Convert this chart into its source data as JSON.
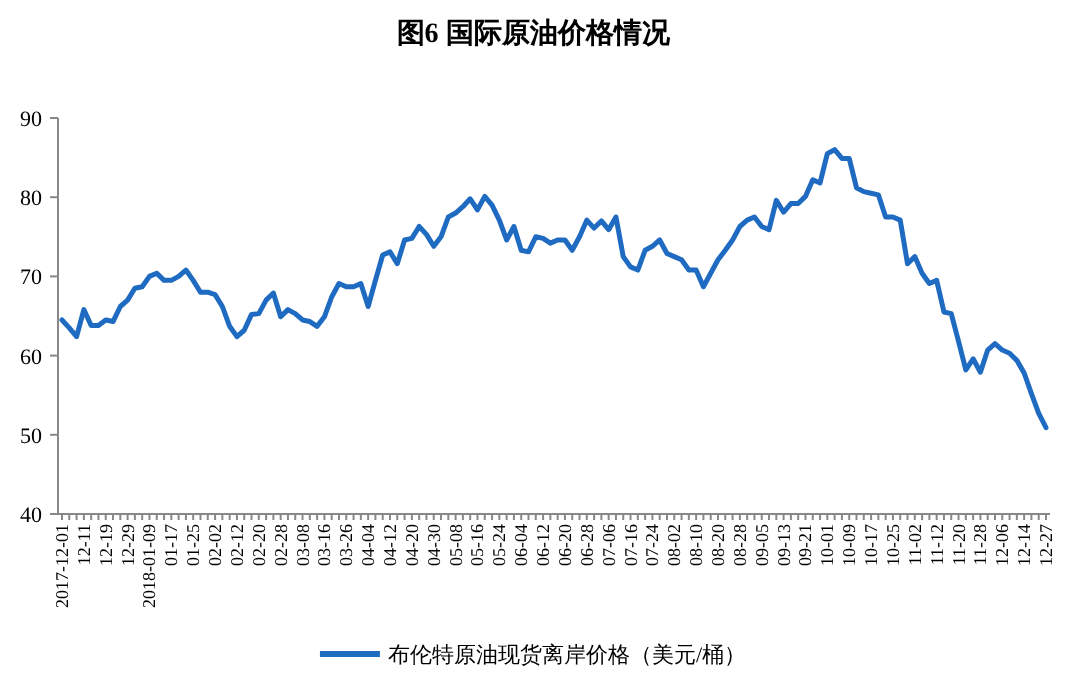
{
  "chart_data": {
    "type": "line",
    "title": "图6  国际原油价格情况",
    "categories": [
      "2017-12-01",
      null,
      null,
      "12-11",
      null,
      null,
      "12-19",
      null,
      null,
      "12-29",
      null,
      null,
      "2018-01-09",
      null,
      null,
      "01-17",
      null,
      null,
      "01-25",
      null,
      null,
      "02-02",
      null,
      null,
      "02-12",
      null,
      null,
      "02-20",
      null,
      null,
      "02-28",
      null,
      null,
      "03-08",
      null,
      null,
      "03-16",
      null,
      null,
      "03-26",
      null,
      null,
      "04-04",
      null,
      null,
      "04-12",
      null,
      null,
      "04-20",
      null,
      null,
      "04-30",
      null,
      null,
      "05-08",
      null,
      null,
      "05-16",
      null,
      null,
      "05-24",
      null,
      null,
      "06-04",
      null,
      null,
      "06-12",
      null,
      null,
      "06-20",
      null,
      null,
      "06-28",
      null,
      null,
      "07-06",
      null,
      null,
      "07-16",
      null,
      null,
      "07-24",
      null,
      null,
      "08-02",
      null,
      null,
      "08-10",
      null,
      null,
      "08-20",
      null,
      null,
      "08-28",
      null,
      null,
      "09-05",
      null,
      null,
      "09-13",
      null,
      null,
      "09-21",
      null,
      null,
      "10-01",
      null,
      null,
      "10-09",
      null,
      null,
      "10-17",
      null,
      null,
      "10-25",
      null,
      null,
      "11-02",
      null,
      null,
      "11-12",
      null,
      null,
      "11-20",
      null,
      null,
      "11-28",
      null,
      null,
      "12-06",
      null,
      null,
      "12-14",
      null,
      null,
      "12-27"
    ],
    "series": [
      {
        "name": "布伦特原油现货离岸价格（美元/桶）",
        "color": "#1f6bc1",
        "values": [
          64.5,
          63.5,
          62.4,
          65.8,
          63.8,
          63.8,
          64.5,
          64.3,
          66.2,
          67.0,
          68.5,
          68.7,
          70.0,
          70.4,
          69.5,
          69.5,
          70.0,
          70.8,
          69.5,
          68.0,
          68.0,
          67.7,
          66.2,
          63.7,
          62.4,
          63.2,
          65.2,
          65.3,
          67.0,
          67.9,
          64.9,
          65.8,
          65.3,
          64.5,
          64.3,
          63.7,
          64.9,
          67.4,
          69.1,
          68.7,
          68.7,
          69.1,
          66.2,
          69.5,
          72.7,
          73.1,
          71.6,
          74.6,
          74.8,
          76.3,
          75.3,
          73.8,
          75.0,
          77.5,
          78.0,
          78.8,
          79.8,
          78.4,
          80.1,
          79.0,
          77.1,
          74.6,
          76.3,
          73.3,
          73.1,
          75.0,
          74.8,
          74.2,
          74.6,
          74.6,
          73.3,
          75.0,
          77.1,
          76.1,
          77.0,
          75.9,
          77.5,
          72.5,
          71.2,
          70.8,
          73.3,
          73.8,
          74.6,
          72.9,
          72.5,
          72.1,
          70.8,
          70.8,
          68.7,
          70.4,
          72.1,
          73.3,
          74.6,
          76.3,
          77.1,
          77.5,
          76.3,
          75.9,
          79.6,
          78.1,
          79.2,
          79.2,
          80.1,
          82.2,
          81.8,
          85.5,
          86.0,
          84.9,
          84.9,
          81.2,
          80.7,
          80.5,
          80.3,
          77.5,
          77.5,
          77.1,
          71.6,
          72.5,
          70.4,
          69.1,
          69.5,
          65.5,
          65.3,
          61.8,
          58.2,
          59.6,
          57.9,
          60.7,
          61.5,
          60.7,
          60.3,
          59.4,
          57.8,
          55.2,
          52.7,
          50.9
        ]
      }
    ],
    "ylim": [
      40,
      90
    ],
    "yticks": [
      40,
      50,
      60,
      70,
      80,
      90
    ],
    "grid": false,
    "legend": "bottom",
    "marker": "none",
    "line_style": "solid"
  }
}
